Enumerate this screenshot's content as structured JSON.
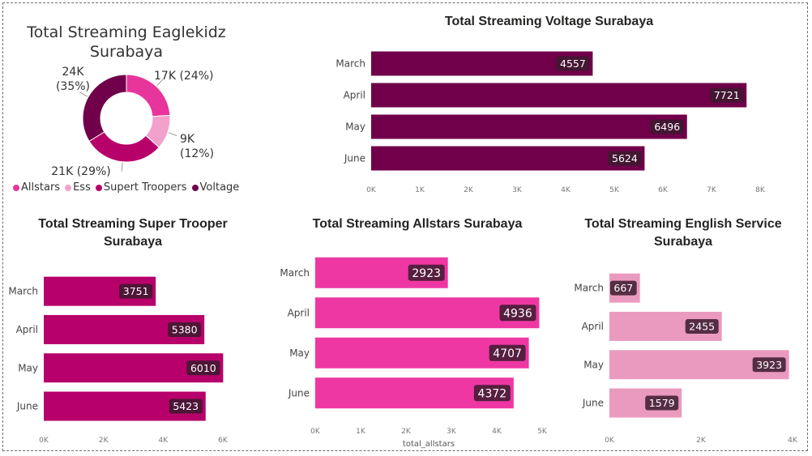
{
  "chart_data": [
    {
      "type": "pie",
      "title": "Total Streaming Eaglekidz Surabaya",
      "categories": [
        "Allstars",
        "Ess",
        "Supert Troopers",
        "Voltage"
      ],
      "values": [
        17000,
        9000,
        21000,
        24000
      ],
      "data_labels": [
        "17K (24%)",
        "9K (12%)",
        "21K (29%)",
        "24K (35%)"
      ],
      "colors": [
        "#e8359c",
        "#f2a0cc",
        "#b7006a",
        "#70004a"
      ],
      "legend": "bottom"
    },
    {
      "type": "bar",
      "orientation": "horizontal",
      "title": "Total Streaming Voltage Surabaya",
      "categories": [
        "March",
        "April",
        "May",
        "June"
      ],
      "values": [
        4557,
        7721,
        6496,
        5624
      ],
      "xlim": [
        0,
        8000
      ],
      "xticks": [
        "0K",
        "1K",
        "2K",
        "3K",
        "4K",
        "5K",
        "6K",
        "7K",
        "8K"
      ],
      "xlabel": "",
      "color": "#70004a"
    },
    {
      "type": "bar",
      "orientation": "horizontal",
      "title": "Total Streaming Super Trooper Surabaya",
      "categories": [
        "March",
        "April",
        "May",
        "June"
      ],
      "values": [
        3751,
        5380,
        6010,
        5423
      ],
      "xlim": [
        0,
        6000
      ],
      "xticks": [
        "0K",
        "2K",
        "4K",
        "6K"
      ],
      "xlabel": "",
      "color": "#b7006a"
    },
    {
      "type": "bar",
      "orientation": "horizontal",
      "title": "Total Streaming Allstars Surabaya",
      "categories": [
        "March",
        "April",
        "May",
        "June"
      ],
      "values": [
        2923,
        4936,
        4707,
        4372
      ],
      "xlim": [
        0,
        5000
      ],
      "xticks": [
        "0K",
        "1K",
        "2K",
        "3K",
        "4K",
        "5K"
      ],
      "xlabel": "total_allstars",
      "color": "#ef37a4"
    },
    {
      "type": "bar",
      "orientation": "horizontal",
      "title": "Total Streaming English Service Surabaya",
      "categories": [
        "March",
        "April",
        "May",
        "June"
      ],
      "values": [
        667,
        2455,
        3923,
        1579
      ],
      "xlim": [
        0,
        4000
      ],
      "xticks": [
        "0K",
        "2K",
        "4K"
      ],
      "xlabel": "",
      "color": "#eb9abf"
    }
  ]
}
